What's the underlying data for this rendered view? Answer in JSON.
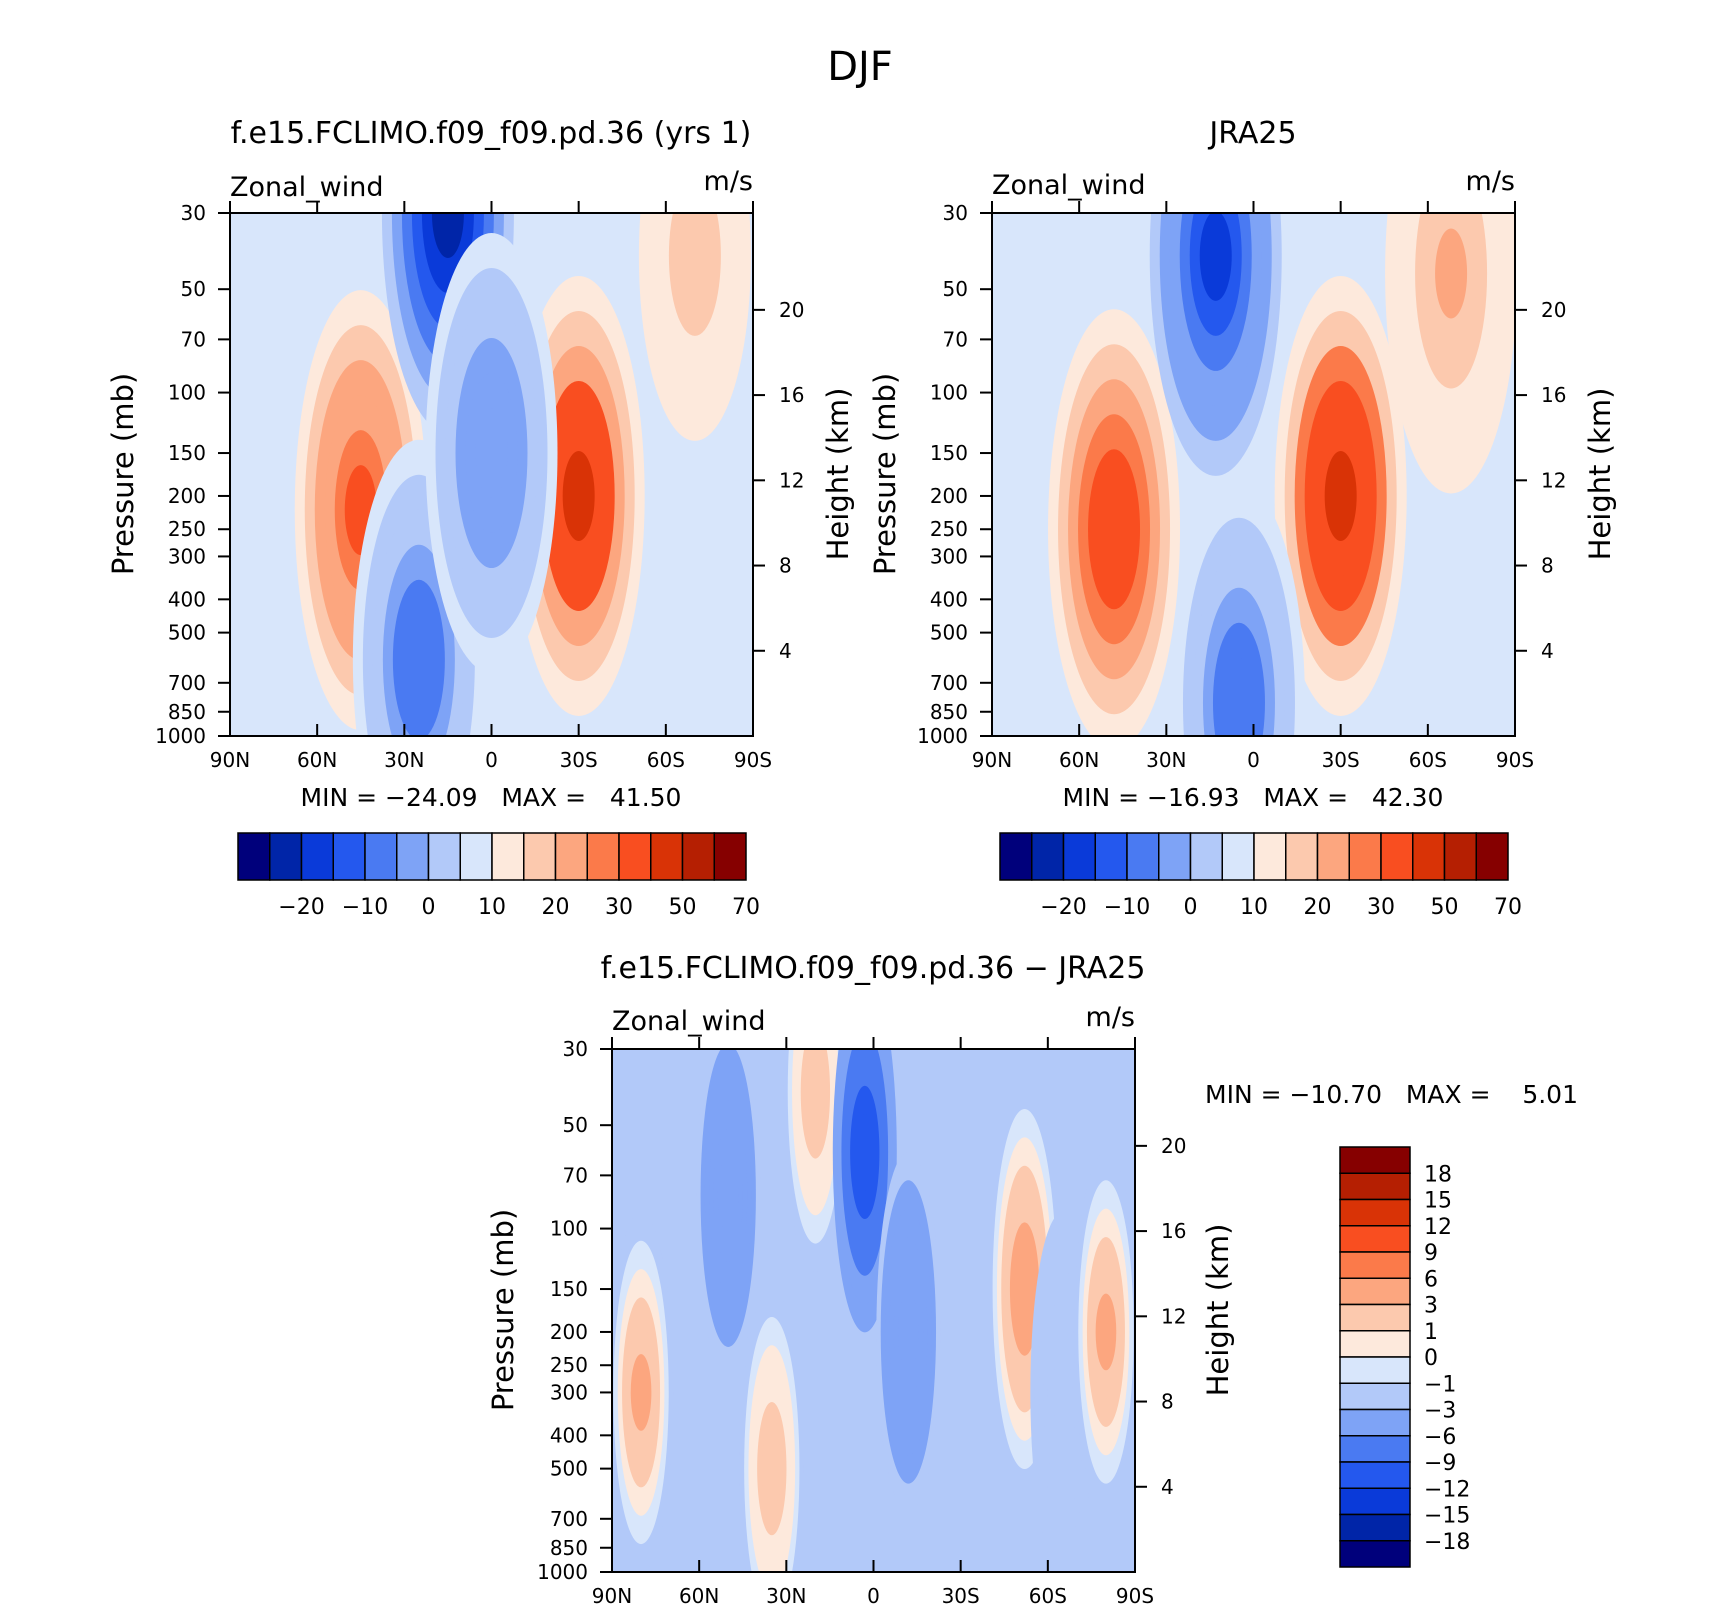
{
  "figure": {
    "title": "DJF"
  },
  "panels": [
    {
      "id": "model",
      "title": "f.e15.FCLIMO.f09_f09.pd.36 (yrs 1)",
      "left_label": "Zonal_wind",
      "right_label": "m/s",
      "y_title": "Pressure (mb)",
      "y2_title": "Height (km)",
      "stats": "MIN = −24.09   MAX =   41.50"
    },
    {
      "id": "obs",
      "title": "JRA25",
      "left_label": "Zonal_wind",
      "right_label": "m/s",
      "y_title": "Pressure (mb)",
      "y2_title": "Height (km)",
      "stats": "MIN = −16.93   MAX =   42.30"
    },
    {
      "id": "diff",
      "title": "f.e15.FCLIMO.f09_f09.pd.36 − JRA25",
      "left_label": "Zonal_wind",
      "right_label": "m/s",
      "y_title": "Pressure (mb)",
      "y2_title": "Height (km)",
      "stats": "MIN = −10.70   MAX =    5.01"
    }
  ],
  "chart_data": [
    {
      "type": "heatmap",
      "panel": "model",
      "x_tick_labels": [
        "90N",
        "60N",
        "30N",
        "0",
        "30S",
        "60S",
        "90S"
      ],
      "y_tick_labels": [
        "30",
        "50",
        "70",
        "100",
        "150",
        "200",
        "250",
        "300",
        "400",
        "500",
        "700",
        "850",
        "1000"
      ],
      "y_scale": "log",
      "ylim": [
        1000,
        30
      ],
      "y2_tick_labels": [
        "4",
        "8",
        "12",
        "16",
        "20"
      ],
      "features": [
        {
          "lat": -30,
          "p": 200,
          "value": 41.5,
          "kind": "jet max"
        },
        {
          "lat": 45,
          "p": 220,
          "value": 33,
          "kind": "jet"
        },
        {
          "lat": 15,
          "p": 30,
          "value": -24.09,
          "kind": "easterly min"
        },
        {
          "lat": -70,
          "p": 40,
          "value": 18,
          "kind": "polar"
        },
        {
          "lat": 25,
          "p": 600,
          "value": -8,
          "kind": "surface easterly"
        },
        {
          "lat": 0,
          "p": 150,
          "value": -5,
          "kind": "equatorial"
        }
      ],
      "colorbar": {
        "levels": [
          "-20",
          "-10",
          "0",
          "10",
          "20",
          "30",
          "50",
          "70"
        ]
      }
    },
    {
      "type": "heatmap",
      "panel": "obs",
      "x_tick_labels": [
        "90N",
        "60N",
        "30N",
        "0",
        "30S",
        "60S",
        "90S"
      ],
      "y_tick_labels": [
        "30",
        "50",
        "70",
        "100",
        "150",
        "200",
        "250",
        "300",
        "400",
        "500",
        "700",
        "850",
        "1000"
      ],
      "y_scale": "log",
      "ylim": [
        1000,
        30
      ],
      "y2_tick_labels": [
        "4",
        "8",
        "12",
        "16",
        "20"
      ],
      "features": [
        {
          "lat": -30,
          "p": 200,
          "value": 42.3,
          "kind": "jet max"
        },
        {
          "lat": 48,
          "p": 250,
          "value": 36,
          "kind": "jet"
        },
        {
          "lat": 13,
          "p": 40,
          "value": -16.93,
          "kind": "easterly min"
        },
        {
          "lat": -68,
          "p": 45,
          "value": 20,
          "kind": "polar"
        },
        {
          "lat": 5,
          "p": 800,
          "value": -8,
          "kind": "surface easterly"
        }
      ],
      "colorbar": {
        "levels": [
          "-20",
          "-10",
          "0",
          "10",
          "20",
          "30",
          "50",
          "70"
        ]
      }
    },
    {
      "type": "heatmap",
      "panel": "diff",
      "x_tick_labels": [
        "90N",
        "60N",
        "30N",
        "0",
        "30S",
        "60S",
        "90S"
      ],
      "y_tick_labels": [
        "30",
        "50",
        "70",
        "100",
        "150",
        "200",
        "250",
        "300",
        "400",
        "500",
        "700",
        "850",
        "1000"
      ],
      "y_scale": "log",
      "ylim": [
        1000,
        30
      ],
      "y2_tick_labels": [
        "4",
        "8",
        "12",
        "16",
        "20"
      ],
      "features": [
        {
          "lat": 80,
          "p": 300,
          "value": 3
        },
        {
          "lat": 50,
          "p": 80,
          "value": -6
        },
        {
          "lat": 35,
          "p": 500,
          "value": 2
        },
        {
          "lat": 20,
          "p": 40,
          "value": 2
        },
        {
          "lat": 3,
          "p": 60,
          "value": -10.7
        },
        {
          "lat": -12,
          "p": 200,
          "value": -6
        },
        {
          "lat": -52,
          "p": 150,
          "value": 5.01
        },
        {
          "lat": -65,
          "p": 300,
          "value": -2
        },
        {
          "lat": -80,
          "p": 200,
          "value": 3
        }
      ],
      "colorbar": {
        "levels": [
          "18",
          "15",
          "12",
          "9",
          "6",
          "3",
          "1",
          "0",
          "−1",
          "−3",
          "−6",
          "−9",
          "−12",
          "−15",
          "−18"
        ]
      }
    }
  ],
  "colors": {
    "palette": [
      "#00007b",
      "#0025a8",
      "#0a3ad9",
      "#2458ee",
      "#4a7af2",
      "#7ea3f6",
      "#b2c9f9",
      "#d8e6fb",
      "#fde9dc",
      "#fcc9ae",
      "#fca67f",
      "#fb7a4a",
      "#f94e20",
      "#d93306",
      "#b51f02",
      "#860000"
    ]
  }
}
